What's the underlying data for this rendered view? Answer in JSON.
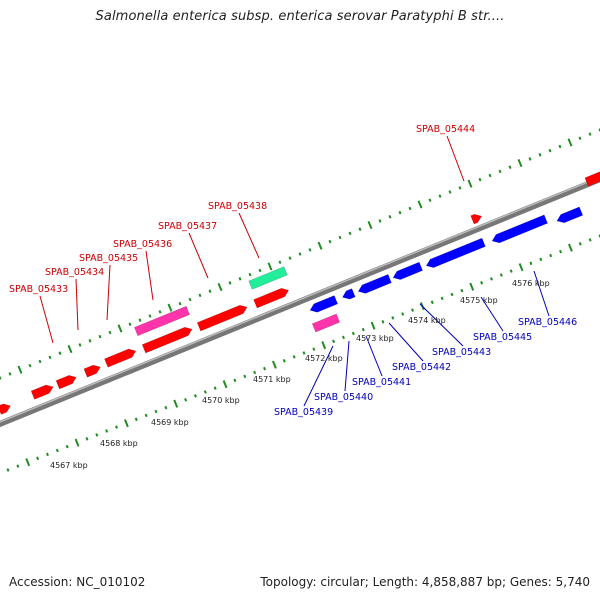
{
  "title": "Salmonella enterica subsp. enterica serovar Paratyphi B str....",
  "footer": {
    "accession": "Accession: NC_010102",
    "summary": "Topology: circular; Length: 4,858,887 bp; Genes: 5,740"
  },
  "colors": {
    "forward_gene": "#ff0000",
    "reverse_gene": "#0000ff",
    "rna_gene": "#ff33aa",
    "highlight_gene": "#22ee99",
    "label_forward": "#cc0000",
    "label_reverse": "#0000bb",
    "tick_green": "#228b22",
    "backbone": "#888888"
  },
  "scale_labels": [
    "4567 kbp",
    "4568 kbp",
    "4569 kbp",
    "4570 kbp",
    "4571 kbp",
    "4572 kbp",
    "4573 kbp",
    "4574 kbp",
    "4575 kbp",
    "4576 kbp"
  ],
  "labels_forward": [
    "SPAB_05433",
    "SPAB_05434",
    "SPAB_05435",
    "SPAB_05436",
    "SPAB_05437",
    "SPAB_05438",
    "SPAB_05444"
  ],
  "labels_reverse": [
    "SPAB_05439",
    "SPAB_05440",
    "SPAB_05441",
    "SPAB_05442",
    "SPAB_05443",
    "SPAB_05445",
    "SPAB_05446"
  ]
}
